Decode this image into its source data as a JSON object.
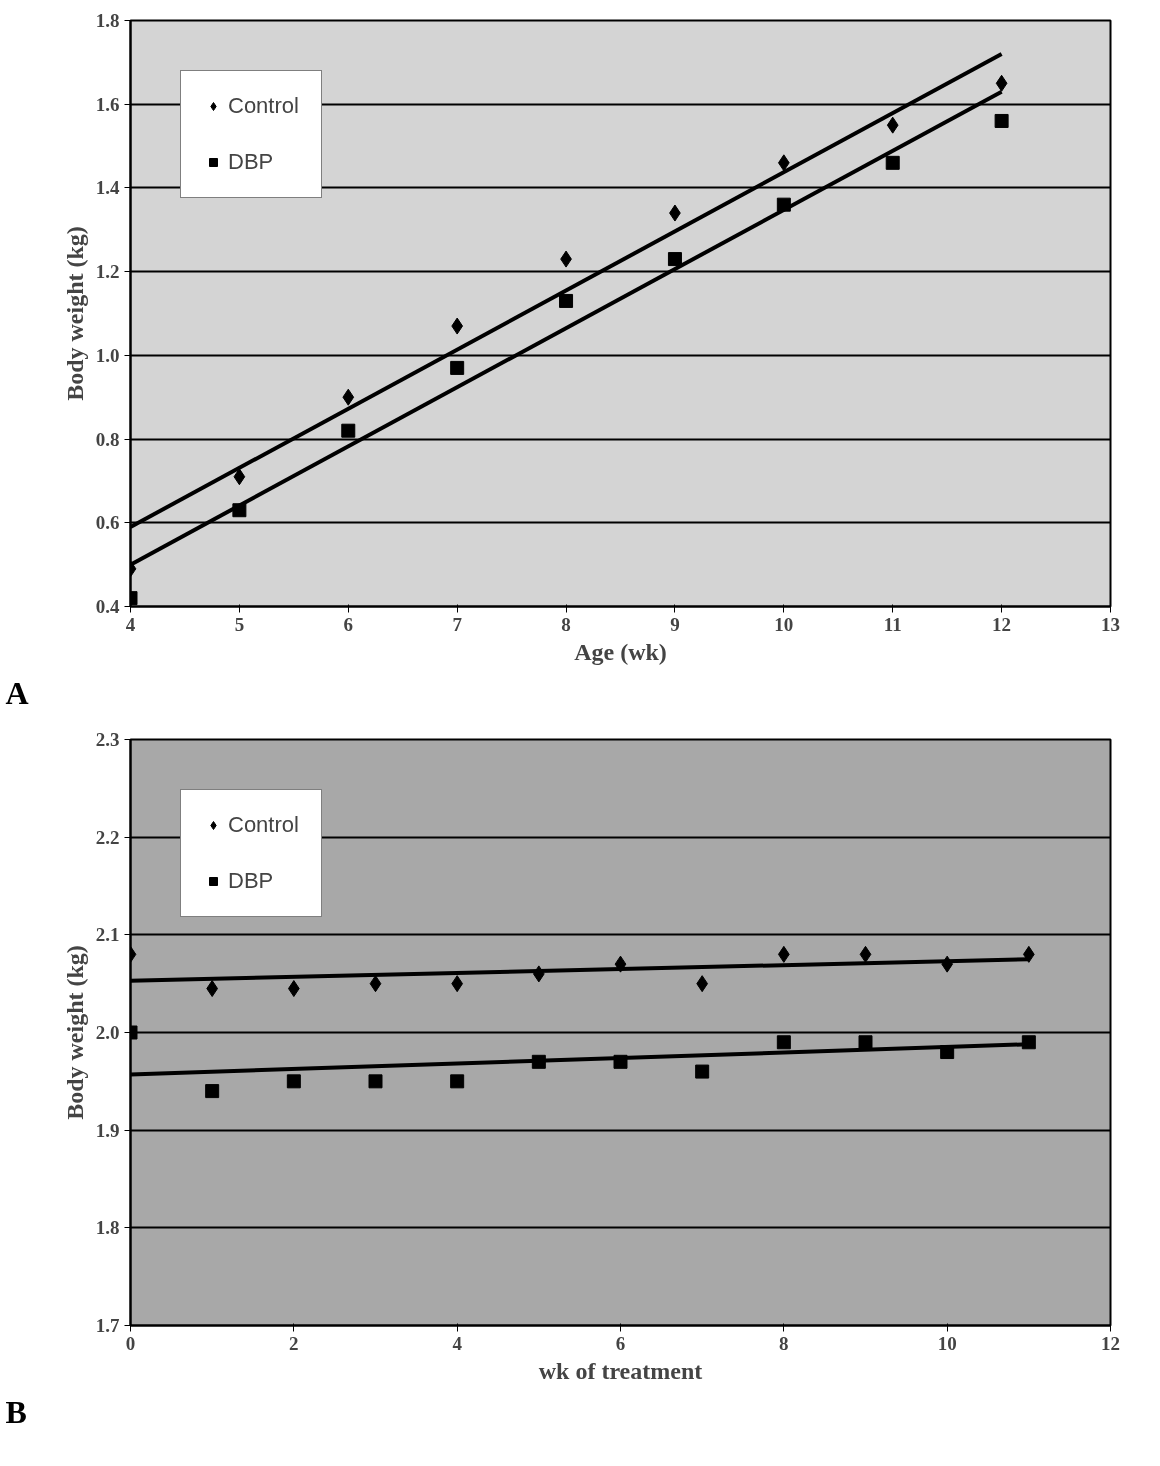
{
  "chart_data": [
    {
      "type": "scatter",
      "xlabel": "Age (wk)",
      "ylabel": "Body weight (kg)",
      "annotations": [
        "A"
      ],
      "xlim": [
        4,
        13
      ],
      "xticks": [
        4,
        5,
        6,
        7,
        8,
        9,
        10,
        11,
        12,
        13
      ],
      "ylim": [
        0.4,
        1.8
      ],
      "yticks": [
        0.4,
        0.6,
        0.8,
        {
          "value": 1,
          "label": "1.0"
        },
        1.2,
        1.4,
        1.6,
        1.8
      ],
      "grid": "y",
      "legend": "top left",
      "series": [
        {
          "name": "Control",
          "color": "#000000",
          "marker": "diamond",
          "x": [
            4,
            5,
            6,
            7,
            8,
            9,
            10,
            11,
            12
          ],
          "values": [
            0.49,
            0.71,
            0.9,
            1.07,
            1.23,
            1.34,
            1.46,
            1.55,
            1.65
          ]
        },
        {
          "name": "DBP",
          "color": "#000000",
          "marker": "square",
          "x": [
            4,
            5,
            6,
            7,
            8,
            9,
            10,
            11,
            12
          ],
          "values": [
            0.42,
            0.63,
            0.82,
            0.97,
            1.13,
            1.23,
            1.36,
            1.46,
            1.56
          ]
        },
        {
          "type": "line",
          "color": "#000000",
          "x": [
            4,
            12
          ],
          "values": [
            0.59,
            1.72
          ]
        },
        {
          "type": "line",
          "color": "#000000",
          "x": [
            4,
            12
          ],
          "values": [
            0.5,
            1.63
          ]
        }
      ]
    },
    {
      "type": "scatter",
      "xlabel": "wk of treatment",
      "ylabel": "Body weight (kg)",
      "annotations": [
        "B"
      ],
      "xlim": [
        0,
        12
      ],
      "xticks": [
        0,
        2,
        4,
        6,
        8,
        10,
        12
      ],
      "ylim": [
        1.7,
        2.3
      ],
      "yticks": [
        1.7,
        1.8,
        1.9,
        {
          "value": 2,
          "label": "2.0"
        },
        2.1,
        2.2,
        2.3
      ],
      "grid": "y",
      "legend": "top left",
      "series": [
        {
          "name": "Control",
          "color": "#000000",
          "marker": "diamond",
          "x": [
            0,
            1,
            2,
            3,
            4,
            5,
            6,
            7,
            8,
            9,
            10,
            11
          ],
          "values": [
            2.08,
            2.045,
            2.045,
            2.05,
            2.05,
            2.06,
            2.07,
            2.05,
            2.08,
            2.08,
            2.07,
            2.08
          ]
        },
        {
          "name": "DBP",
          "color": "#000000",
          "marker": "square",
          "x": [
            0,
            1,
            2,
            3,
            4,
            5,
            6,
            7,
            8,
            9,
            10,
            11
          ],
          "values": [
            2.0,
            1.94,
            1.95,
            1.95,
            1.95,
            1.97,
            1.97,
            1.96,
            1.99,
            1.99,
            1.98,
            1.99
          ]
        },
        {
          "type": "line",
          "color": "#000000",
          "x": [
            0,
            11
          ],
          "values": [
            2.053,
            2.075
          ]
        },
        {
          "type": "line",
          "color": "#000000",
          "x": [
            0,
            11
          ],
          "values": [
            1.957,
            1.988
          ]
        }
      ]
    }
  ]
}
